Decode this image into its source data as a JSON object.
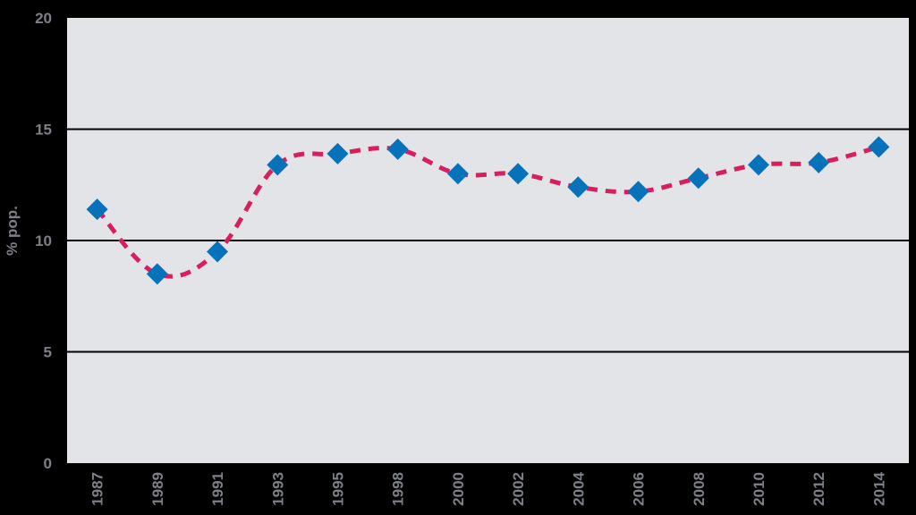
{
  "chart_data": {
    "type": "line",
    "title": "",
    "xlabel": "",
    "ylabel": "% pop.",
    "ylim": [
      0,
      20
    ],
    "yticks": [
      0,
      5,
      10,
      15,
      20
    ],
    "grid": true,
    "legend": null,
    "categories": [
      "1987",
      "1989",
      "1991",
      "1993",
      "1995",
      "1998",
      "2000",
      "2002",
      "2004",
      "2006",
      "2008",
      "2010",
      "2012",
      "2014"
    ],
    "series": [
      {
        "name": "% pop.",
        "values": [
          11.4,
          8.5,
          9.5,
          13.4,
          13.9,
          14.1,
          13.0,
          13.0,
          12.4,
          12.2,
          12.8,
          13.4,
          13.5,
          14.2
        ],
        "line_color": "#D81F5E",
        "line_style": "dashed",
        "marker": "diamond",
        "marker_color": "#0572BA"
      }
    ]
  },
  "colors": {
    "background": "#000000",
    "plot_background": "#E3E4E8",
    "gridline": "#000000",
    "label": "#7D8088"
  }
}
